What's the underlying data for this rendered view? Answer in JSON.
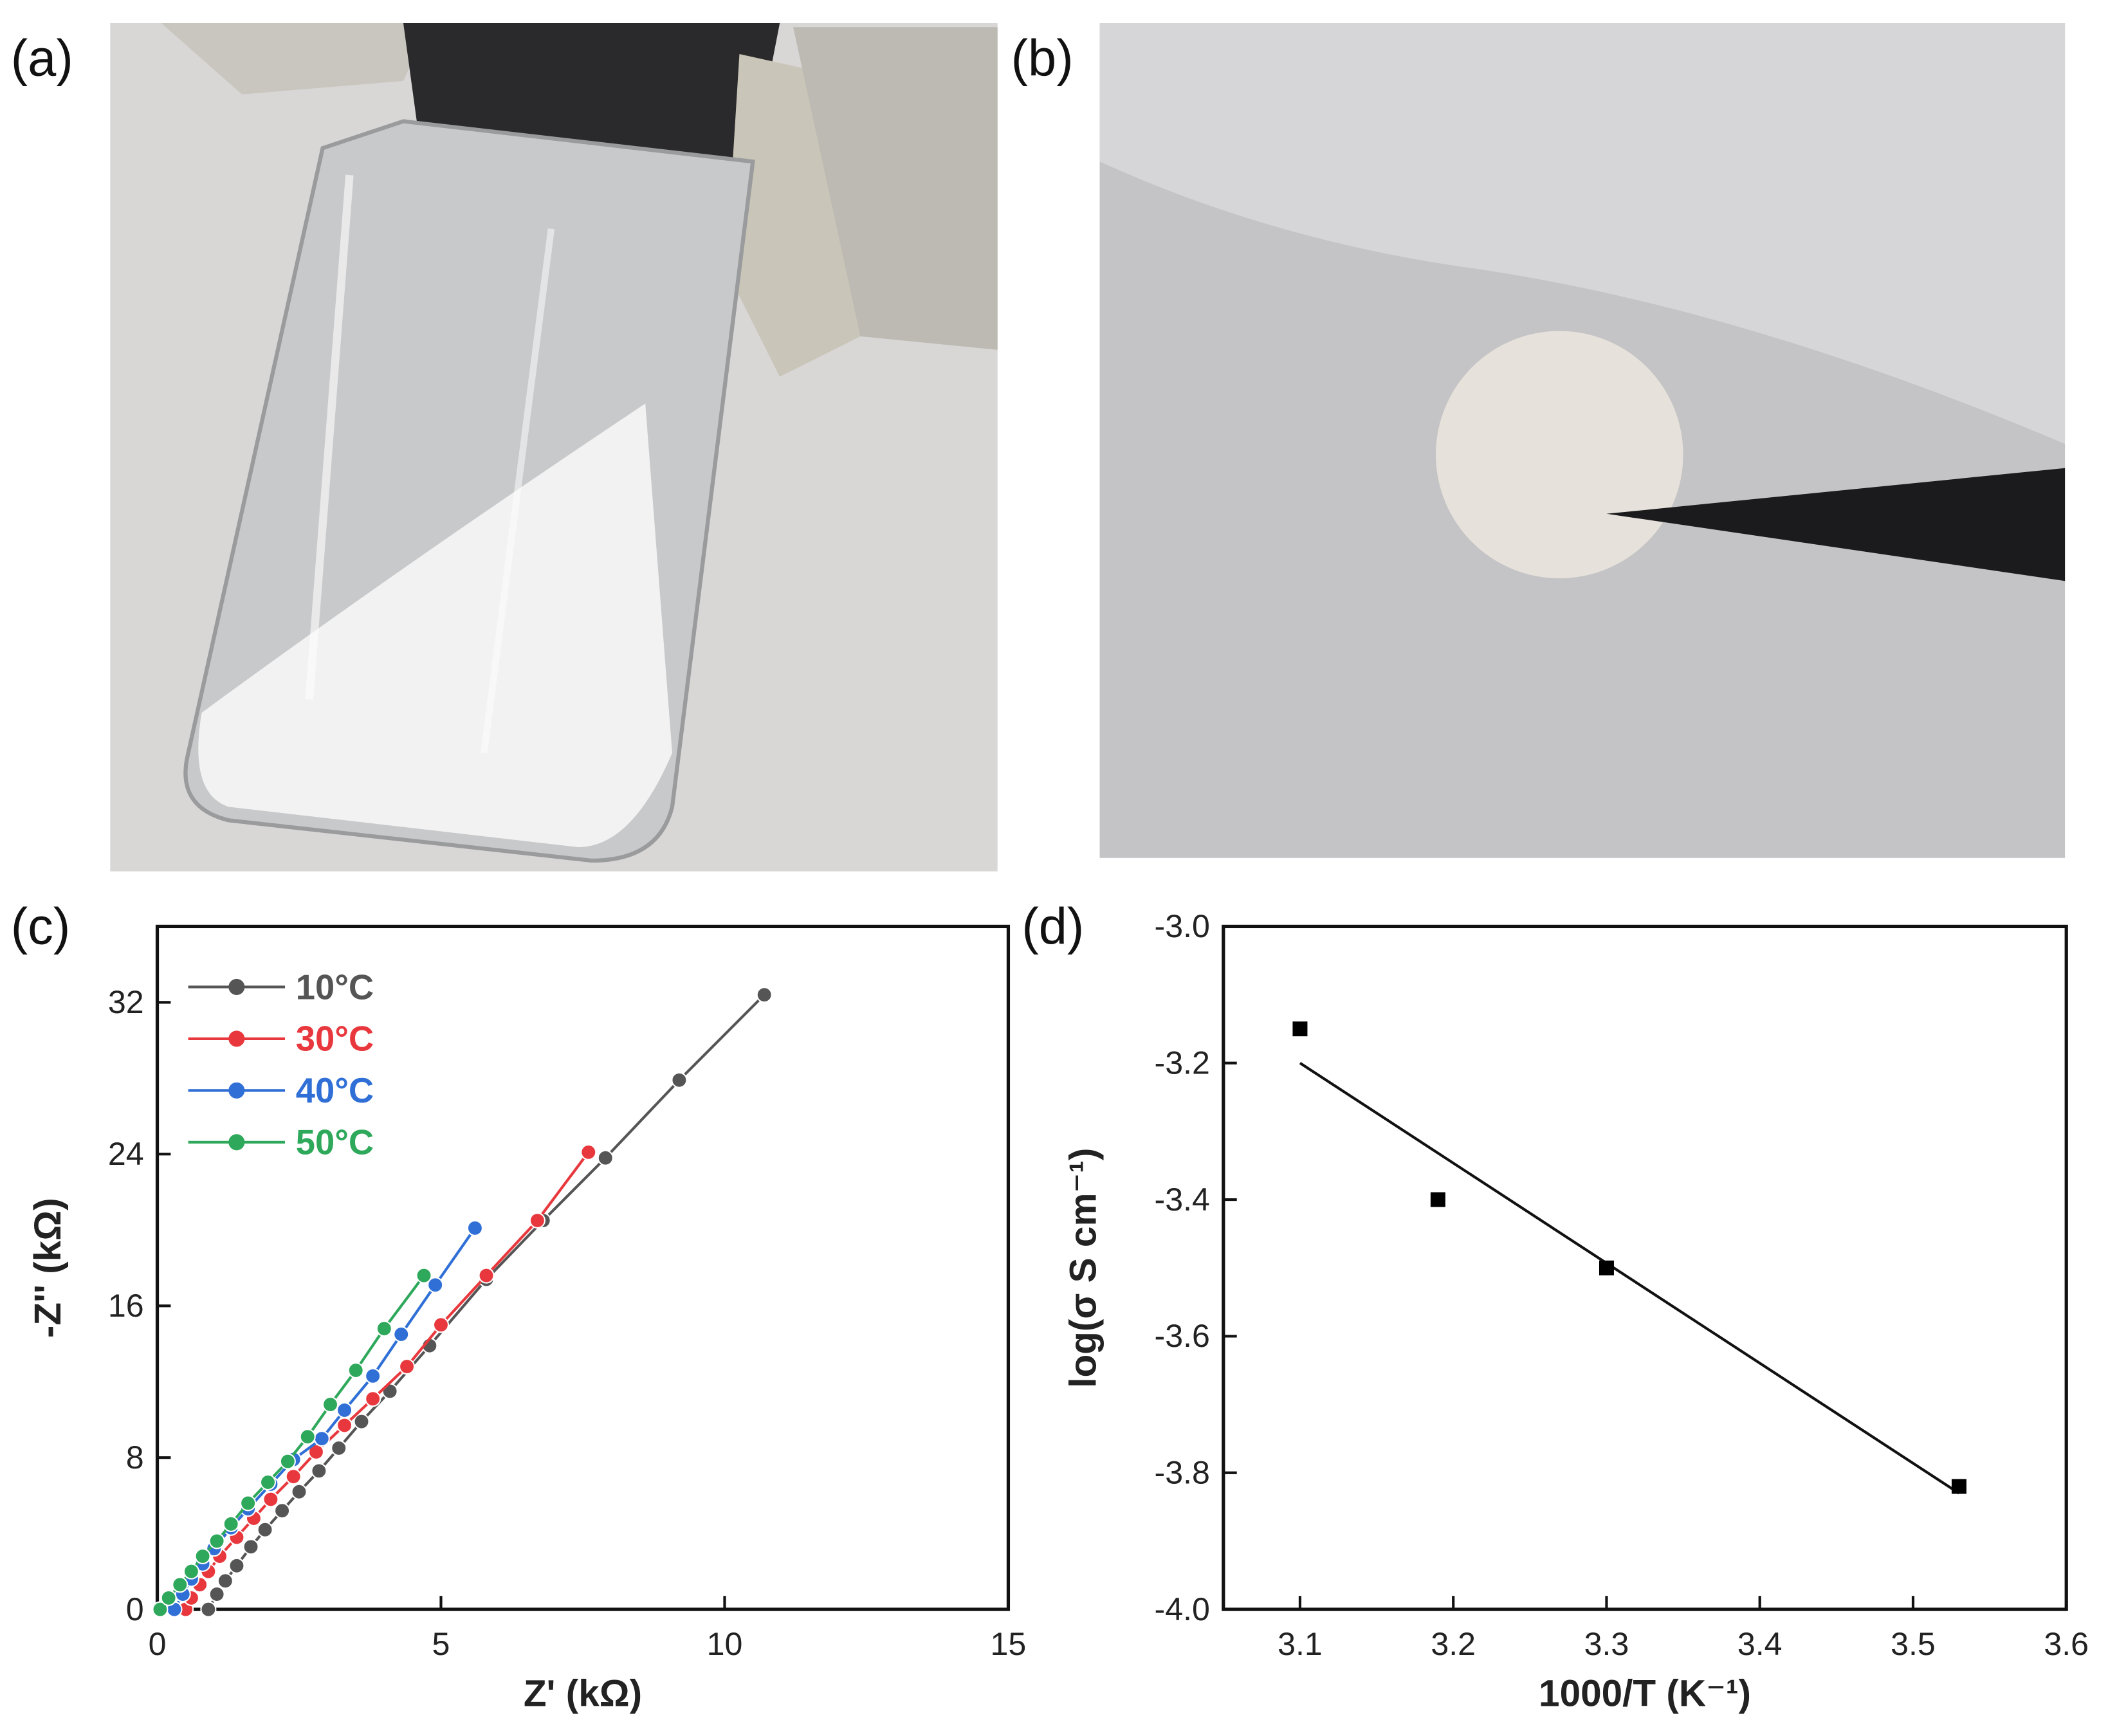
{
  "panel_labels": [
    "(a)",
    "(b)",
    "(c)",
    "(d)"
  ],
  "chart_data": [
    {
      "type": "line",
      "x_label": "Z' (kΩ)",
      "y_label": "-Z'' (kΩ)",
      "xlim": [
        0,
        15
      ],
      "xticks": [
        0,
        5,
        10,
        15
      ],
      "ylim": [
        0,
        36
      ],
      "yticks": [
        0,
        8,
        16,
        24,
        32
      ],
      "legend": "upper left",
      "series": [
        {
          "name": "10°C",
          "color": "#555555",
          "x": [
            0.9,
            1.05,
            1.2,
            1.4,
            1.65,
            1.9,
            2.2,
            2.5,
            2.85,
            3.2,
            3.6,
            4.1,
            4.8,
            5.8,
            6.8,
            7.9,
            9.2,
            10.7
          ],
          "values": [
            0,
            0.8,
            1.5,
            2.3,
            3.3,
            4.2,
            5.2,
            6.2,
            7.3,
            8.5,
            9.9,
            11.5,
            13.9,
            17.4,
            20.5,
            23.8,
            27.9,
            32.4
          ]
        },
        {
          "name": "30°C",
          "color": "#e8383d",
          "x": [
            0.5,
            0.6,
            0.75,
            0.9,
            1.1,
            1.4,
            1.7,
            2.0,
            2.4,
            2.8,
            3.3,
            3.8,
            4.4,
            5.0,
            5.8,
            6.7,
            7.6
          ],
          "values": [
            0,
            0.6,
            1.3,
            2.0,
            2.8,
            3.8,
            4.8,
            5.8,
            7.0,
            8.3,
            9.7,
            11.1,
            12.8,
            15.0,
            17.6,
            20.5,
            24.1
          ]
        },
        {
          "name": "40°C",
          "color": "#2f6fd6",
          "x": [
            0.3,
            0.45,
            0.6,
            0.8,
            1.0,
            1.3,
            1.6,
            2.0,
            2.4,
            2.9,
            3.3,
            3.8,
            4.3,
            4.9,
            5.6
          ],
          "values": [
            0,
            0.8,
            1.6,
            2.4,
            3.2,
            4.3,
            5.3,
            6.6,
            7.9,
            9.0,
            10.5,
            12.3,
            14.5,
            17.1,
            20.1
          ]
        },
        {
          "name": "50°C",
          "color": "#2ea85a",
          "x": [
            0.05,
            0.2,
            0.4,
            0.6,
            0.8,
            1.05,
            1.3,
            1.6,
            1.95,
            2.3,
            2.65,
            3.05,
            3.5,
            4.0,
            4.7
          ],
          "values": [
            0,
            0.6,
            1.3,
            2.0,
            2.8,
            3.6,
            4.5,
            5.6,
            6.7,
            7.8,
            9.1,
            10.8,
            12.6,
            14.8,
            17.6
          ]
        }
      ]
    },
    {
      "type": "scatter",
      "x_label": "1000/T (K⁻¹)",
      "y_label": "log(σ S cm⁻¹)",
      "xlim": [
        3.05,
        3.6
      ],
      "xticks": [
        3.1,
        3.2,
        3.3,
        3.4,
        3.5,
        3.6
      ],
      "ylim": [
        -4,
        -3
      ],
      "yticks": [
        {
          "value": -4,
          "label": "-4.0"
        },
        -3.8,
        -3.6,
        -3.4,
        -3.2,
        {
          "value": -3,
          "label": "-3.0"
        }
      ],
      "x": [
        3.1,
        3.19,
        3.3,
        3.53
      ],
      "values": [
        -3.15,
        -3.4,
        -3.5,
        -3.82
      ],
      "color": "#000000",
      "fit": {
        "x": [
          3.1,
          3.53
        ],
        "values": [
          -3.2,
          -3.83
        ]
      }
    }
  ]
}
